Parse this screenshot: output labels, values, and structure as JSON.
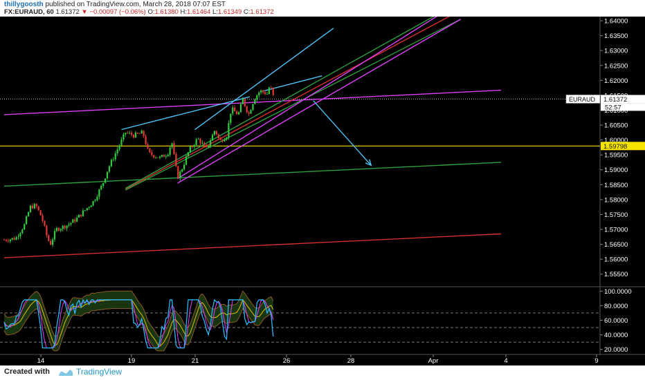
{
  "header": {
    "author": "thillygoosth",
    "published": "published on TradingView.com, March 28, 2018 07:07 EST",
    "symbol": "FX:EURAUD, 60",
    "last": "1.61372",
    "change": "−0.00097 (−0.06%)",
    "o_label": "O:",
    "o_value": "1.61380",
    "h_label": "H:",
    "h_value": "1.61464",
    "l_label": "L:",
    "l_value": "1.61349",
    "c_label": "C:",
    "c_value": "1.61372"
  },
  "footer": {
    "created": "Created with",
    "brand": "TradingView"
  },
  "colors": {
    "bg": "#000000",
    "up": "#2ecc40",
    "down": "#e53935",
    "cyan": "#4fc3f7",
    "magenta": "#e040fb",
    "red": "#d32f2f",
    "green": "#2e9e3e",
    "yellow": "#f5e400",
    "white": "#ffffff"
  },
  "chart_data": {
    "type": "candlestick",
    "symbol": "EURAUD",
    "interval": "60",
    "x_ticks": [
      "14",
      "19",
      "21",
      "26",
      "28",
      "Apr",
      "4",
      "9"
    ],
    "y_ticks": [
      "1.64000",
      "1.63500",
      "1.63000",
      "1.62500",
      "1.62000",
      "1.61500",
      "1.61000",
      "1.60500",
      "1.60000",
      "1.59500",
      "1.59000",
      "1.58500",
      "1.58000",
      "1.57500",
      "1.57000",
      "1.56500",
      "1.56000",
      "1.55500"
    ],
    "ylim": [
      1.551,
      1.6414
    ],
    "price_labels": {
      "current_symbol": "EURAUD",
      "current": "1.61372",
      "countdown": "52:57",
      "level": "1.59798"
    },
    "horizontal_level": 1.59798,
    "price_path": [
      [
        0,
        1.5665
      ],
      [
        2,
        1.567
      ],
      [
        3.5,
        1.5715
      ],
      [
        4.5,
        1.5775
      ],
      [
        5.5,
        1.578
      ],
      [
        6.5,
        1.574
      ],
      [
        7.5,
        1.567
      ],
      [
        8,
        1.565
      ],
      [
        9,
        1.57
      ],
      [
        11,
        1.5715
      ],
      [
        12.5,
        1.5735
      ],
      [
        14,
        1.5765
      ],
      [
        15.5,
        1.5795
      ],
      [
        17,
        1.585
      ],
      [
        18,
        1.5905
      ],
      [
        19.5,
        1.5965
      ],
      [
        21,
        1.6025
      ],
      [
        22.5,
        1.6015
      ],
      [
        24,
        1.6025
      ],
      [
        25,
        1.5955
      ],
      [
        27,
        1.594
      ],
      [
        28.3,
        1.5955
      ],
      [
        29,
        1.5995
      ],
      [
        30,
        1.5875
      ],
      [
        30.6,
        1.5895
      ],
      [
        32,
        1.5965
      ],
      [
        33.5,
        1.6005
      ],
      [
        35,
        1.597
      ],
      [
        36.5,
        1.6035
      ],
      [
        37.3,
        1.5995
      ],
      [
        38.5,
        1.6015
      ],
      [
        39.3,
        1.6105
      ],
      [
        40.5,
        1.6085
      ],
      [
        41.3,
        1.6135
      ],
      [
        42.3,
        1.6085
      ],
      [
        43.3,
        1.614
      ],
      [
        44.3,
        1.6165
      ],
      [
        45.5,
        1.6155
      ],
      [
        46,
        1.6185
      ],
      [
        46.7,
        1.6137
      ]
    ],
    "trendlines": [
      {
        "color": "magenta",
        "points": [
          [
            0,
            1.6085
          ],
          [
            86,
            1.6167
          ]
        ]
      },
      {
        "color": "green",
        "points": [
          [
            0,
            1.5845
          ],
          [
            86,
            1.5925
          ]
        ]
      },
      {
        "color": "red",
        "points": [
          [
            0,
            1.5605
          ],
          [
            86,
            1.5685
          ]
        ]
      },
      {
        "color": "red",
        "points": [
          [
            21,
            1.5835
          ],
          [
            79,
            1.6435
          ]
        ]
      },
      {
        "color": "green",
        "points": [
          [
            21,
            1.5838
          ],
          [
            79,
            1.6465
          ]
        ]
      },
      {
        "color": "green",
        "points": [
          [
            21,
            1.5832
          ],
          [
            79,
            1.6405
          ]
        ]
      },
      {
        "color": "magenta",
        "points": [
          [
            30,
            1.587
          ],
          [
            79,
            1.6465
          ]
        ]
      },
      {
        "color": "magenta",
        "points": [
          [
            30,
            1.5855
          ],
          [
            79,
            1.6405
          ]
        ]
      },
      {
        "color": "cyan",
        "points": [
          [
            20.3,
            1.6035
          ],
          [
            42.5,
            1.6145
          ]
        ]
      },
      {
        "color": "cyan",
        "points": [
          [
            33,
            1.6035
          ],
          [
            57,
            1.6375
          ]
        ]
      },
      {
        "color": "cyan",
        "points": [
          [
            45,
            1.6165
          ],
          [
            55,
            1.6215
          ]
        ]
      }
    ],
    "arrow": {
      "color": "cyan",
      "from": [
        53.5,
        1.6132
      ],
      "to": [
        63.5,
        1.5915
      ]
    },
    "oscillator": {
      "y_ticks": [
        "100.0000",
        "80.0000",
        "60.0000",
        "40.0000",
        "20.0000"
      ],
      "ylim": [
        15,
        105
      ],
      "dashed_levels": [
        70,
        50,
        30
      ]
    }
  }
}
